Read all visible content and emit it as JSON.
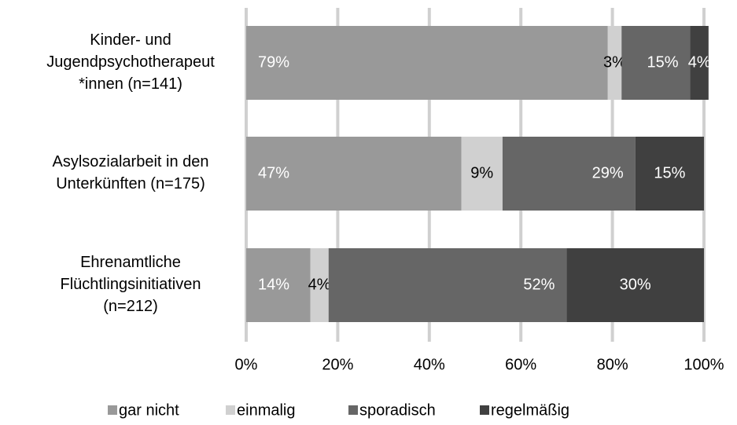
{
  "chart_data": {
    "type": "stacked_barh",
    "categories": [
      "Kinder- und\nJugendpsychotherapeut\n*innen (n=141)",
      "Asylsozialarbeit in den\nUnterkünften (n=175)",
      "Ehrenamtliche\nFlüchtlingsinitiativen\n(n=212)"
    ],
    "series": [
      {
        "name": "gar nicht",
        "color": "#999999",
        "values": [
          79,
          47,
          14
        ],
        "value_labels": [
          "79%",
          "47%",
          "14%"
        ]
      },
      {
        "name": "einmalig",
        "color": "#d0d0d0",
        "values": [
          3,
          9,
          4
        ],
        "value_labels": [
          "3%",
          "9%",
          "4%"
        ]
      },
      {
        "name": "sporadisch",
        "color": "#666666",
        "values": [
          15,
          29,
          52
        ],
        "value_labels": [
          "15%",
          "29%",
          "52%"
        ]
      },
      {
        "name": "regelmäßig",
        "color": "#404040",
        "values": [
          4,
          15,
          30
        ],
        "value_labels": [
          "4%",
          "15%",
          "30%"
        ]
      }
    ],
    "xlim": [
      0,
      100
    ],
    "xticks": [
      {
        "value": 0,
        "label": "0%"
      },
      {
        "value": 20,
        "label": "20%"
      },
      {
        "value": 40,
        "label": "40%"
      },
      {
        "value": 60,
        "label": "60%"
      },
      {
        "value": 80,
        "label": "80%"
      },
      {
        "value": 100,
        "label": "100%"
      }
    ],
    "grid": true,
    "legend": "bottom"
  }
}
